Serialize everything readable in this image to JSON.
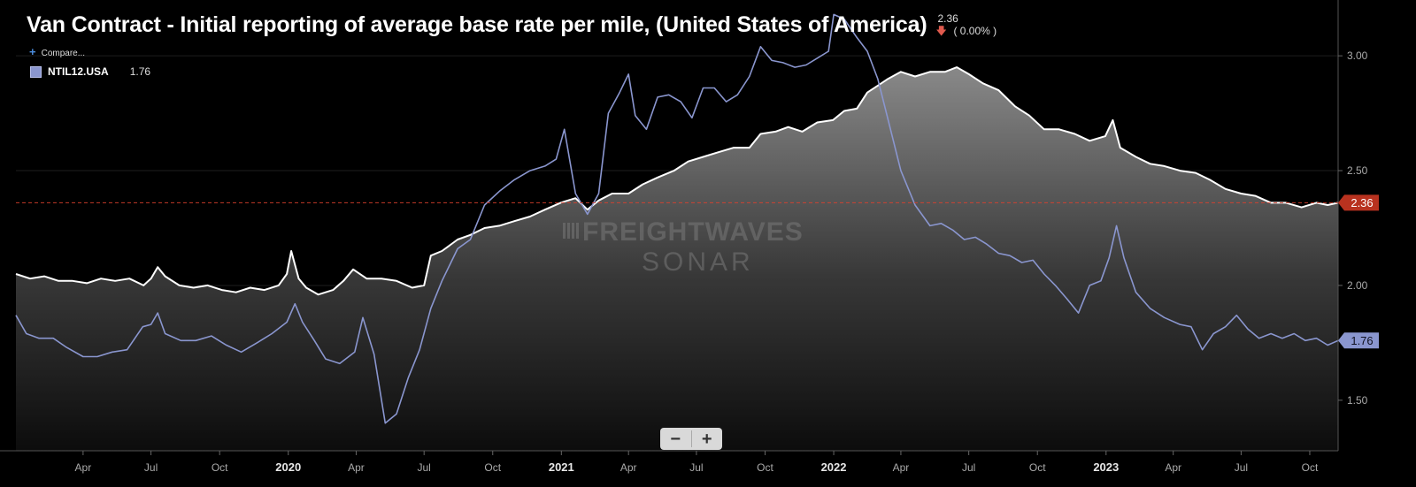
{
  "header": {
    "title": "Van Contract - Initial reporting of average base rate per mile, (United States of America)",
    "last_value": "2.36",
    "change_arrow": "down-arrow-icon",
    "change_text": "( 0.00% )"
  },
  "compare": {
    "icon": "plus-icon",
    "label": "Compare..."
  },
  "legend": {
    "symbol": "NTIL12.USA",
    "value": "1.76",
    "color": "#8a96cf"
  },
  "watermark": {
    "line1": "FREIGHTWAVES",
    "line2": "SONAR"
  },
  "zoom": {
    "minus": "−",
    "plus": "+"
  },
  "colors": {
    "main_series": "#ffffff",
    "compare_series": "#8a96cf",
    "price_line": "#d9402f",
    "background": "#000000"
  },
  "chart_data": {
    "type": "line",
    "xlabel": "",
    "ylabel": "",
    "x_range": [
      "2019-01-01",
      "2023-11-08"
    ],
    "ylim": [
      1.28,
      3.22
    ],
    "y_ticks": [
      "1.50",
      "2.00",
      "2.50",
      "3.00"
    ],
    "y_tick_values": [
      1.5,
      2.0,
      2.5,
      3.0
    ],
    "x_ticks": [
      {
        "label": "Apr",
        "date": "2019-04-01",
        "year": false
      },
      {
        "label": "Jul",
        "date": "2019-07-01",
        "year": false
      },
      {
        "label": "Oct",
        "date": "2019-10-01",
        "year": false
      },
      {
        "label": "2020",
        "date": "2020-01-01",
        "year": true
      },
      {
        "label": "Apr",
        "date": "2020-04-01",
        "year": false
      },
      {
        "label": "Jul",
        "date": "2020-07-01",
        "year": false
      },
      {
        "label": "Oct",
        "date": "2020-10-01",
        "year": false
      },
      {
        "label": "2021",
        "date": "2021-01-01",
        "year": true
      },
      {
        "label": "Apr",
        "date": "2021-04-01",
        "year": false
      },
      {
        "label": "Jul",
        "date": "2021-07-01",
        "year": false
      },
      {
        "label": "Oct",
        "date": "2021-10-01",
        "year": false
      },
      {
        "label": "2022",
        "date": "2022-01-01",
        "year": true
      },
      {
        "label": "Apr",
        "date": "2022-04-01",
        "year": false
      },
      {
        "label": "Jul",
        "date": "2022-07-01",
        "year": false
      },
      {
        "label": "Oct",
        "date": "2022-10-01",
        "year": false
      },
      {
        "label": "2023",
        "date": "2023-01-01",
        "year": true
      },
      {
        "label": "Apr",
        "date": "2023-04-01",
        "year": false
      },
      {
        "label": "Jul",
        "date": "2023-07-01",
        "year": false
      },
      {
        "label": "Oct",
        "date": "2023-10-01",
        "year": false
      }
    ],
    "price_line": {
      "value": 2.36,
      "label": "2.36"
    },
    "series": [
      {
        "name": "",
        "style": "area",
        "points": [
          [
            "2019-01-01",
            2.05
          ],
          [
            "2019-01-20",
            2.03
          ],
          [
            "2019-02-08",
            2.04
          ],
          [
            "2019-02-27",
            2.02
          ],
          [
            "2019-03-18",
            2.02
          ],
          [
            "2019-04-06",
            2.01
          ],
          [
            "2019-04-25",
            2.03
          ],
          [
            "2019-05-14",
            2.02
          ],
          [
            "2019-06-02",
            2.03
          ],
          [
            "2019-06-21",
            2.0
          ],
          [
            "2019-07-01",
            2.03
          ],
          [
            "2019-07-10",
            2.08
          ],
          [
            "2019-07-20",
            2.04
          ],
          [
            "2019-08-08",
            2.0
          ],
          [
            "2019-08-27",
            1.99
          ],
          [
            "2019-09-15",
            2.0
          ],
          [
            "2019-10-04",
            1.98
          ],
          [
            "2019-10-23",
            1.97
          ],
          [
            "2019-11-11",
            1.99
          ],
          [
            "2019-11-30",
            1.98
          ],
          [
            "2019-12-19",
            2.0
          ],
          [
            "2019-12-30",
            2.05
          ],
          [
            "2020-01-05",
            2.15
          ],
          [
            "2020-01-15",
            2.03
          ],
          [
            "2020-01-25",
            1.99
          ],
          [
            "2020-02-10",
            1.96
          ],
          [
            "2020-03-01",
            1.98
          ],
          [
            "2020-03-15",
            2.02
          ],
          [
            "2020-03-28",
            2.07
          ],
          [
            "2020-04-15",
            2.03
          ],
          [
            "2020-05-05",
            2.03
          ],
          [
            "2020-05-25",
            2.02
          ],
          [
            "2020-06-15",
            1.99
          ],
          [
            "2020-07-01",
            2.0
          ],
          [
            "2020-07-10",
            2.13
          ],
          [
            "2020-07-25",
            2.15
          ],
          [
            "2020-08-15",
            2.2
          ],
          [
            "2020-09-01",
            2.22
          ],
          [
            "2020-09-20",
            2.25
          ],
          [
            "2020-10-10",
            2.26
          ],
          [
            "2020-10-30",
            2.28
          ],
          [
            "2020-11-20",
            2.3
          ],
          [
            "2020-12-10",
            2.33
          ],
          [
            "2020-12-31",
            2.36
          ],
          [
            "2021-01-20",
            2.38
          ],
          [
            "2021-02-05",
            2.33
          ],
          [
            "2021-02-20",
            2.37
          ],
          [
            "2021-03-10",
            2.4
          ],
          [
            "2021-04-01",
            2.4
          ],
          [
            "2021-04-20",
            2.44
          ],
          [
            "2021-05-10",
            2.47
          ],
          [
            "2021-06-01",
            2.5
          ],
          [
            "2021-06-20",
            2.54
          ],
          [
            "2021-07-10",
            2.56
          ],
          [
            "2021-07-30",
            2.58
          ],
          [
            "2021-08-20",
            2.6
          ],
          [
            "2021-09-10",
            2.6
          ],
          [
            "2021-09-25",
            2.66
          ],
          [
            "2021-10-15",
            2.67
          ],
          [
            "2021-11-01",
            2.69
          ],
          [
            "2021-11-20",
            2.67
          ],
          [
            "2021-12-10",
            2.71
          ],
          [
            "2021-12-31",
            2.72
          ],
          [
            "2022-01-15",
            2.76
          ],
          [
            "2022-02-01",
            2.77
          ],
          [
            "2022-02-15",
            2.84
          ],
          [
            "2022-03-01",
            2.87
          ],
          [
            "2022-03-15",
            2.9
          ],
          [
            "2022-04-01",
            2.93
          ],
          [
            "2022-04-20",
            2.91
          ],
          [
            "2022-05-10",
            2.93
          ],
          [
            "2022-05-30",
            2.93
          ],
          [
            "2022-06-15",
            2.95
          ],
          [
            "2022-07-01",
            2.92
          ],
          [
            "2022-07-20",
            2.88
          ],
          [
            "2022-08-10",
            2.85
          ],
          [
            "2022-09-01",
            2.78
          ],
          [
            "2022-09-20",
            2.74
          ],
          [
            "2022-10-10",
            2.68
          ],
          [
            "2022-10-30",
            2.68
          ],
          [
            "2022-11-20",
            2.66
          ],
          [
            "2022-12-10",
            2.63
          ],
          [
            "2022-12-31",
            2.65
          ],
          [
            "2023-01-10",
            2.72
          ],
          [
            "2023-01-20",
            2.6
          ],
          [
            "2023-02-10",
            2.56
          ],
          [
            "2023-03-01",
            2.53
          ],
          [
            "2023-03-20",
            2.52
          ],
          [
            "2023-04-10",
            2.5
          ],
          [
            "2023-05-01",
            2.49
          ],
          [
            "2023-05-20",
            2.46
          ],
          [
            "2023-06-10",
            2.42
          ],
          [
            "2023-07-01",
            2.4
          ],
          [
            "2023-07-20",
            2.39
          ],
          [
            "2023-08-10",
            2.36
          ],
          [
            "2023-08-30",
            2.36
          ],
          [
            "2023-09-20",
            2.34
          ],
          [
            "2023-10-10",
            2.36
          ],
          [
            "2023-10-25",
            2.35
          ],
          [
            "2023-11-08",
            2.36
          ]
        ]
      },
      {
        "name": "NTIL12.USA",
        "style": "line",
        "points": [
          [
            "2019-01-01",
            1.87
          ],
          [
            "2019-01-15",
            1.79
          ],
          [
            "2019-02-01",
            1.77
          ],
          [
            "2019-02-20",
            1.77
          ],
          [
            "2019-03-10",
            1.73
          ],
          [
            "2019-04-01",
            1.69
          ],
          [
            "2019-04-20",
            1.69
          ],
          [
            "2019-05-10",
            1.71
          ],
          [
            "2019-05-30",
            1.72
          ],
          [
            "2019-06-20",
            1.82
          ],
          [
            "2019-07-01",
            1.83
          ],
          [
            "2019-07-10",
            1.88
          ],
          [
            "2019-07-20",
            1.79
          ],
          [
            "2019-08-10",
            1.76
          ],
          [
            "2019-08-30",
            1.76
          ],
          [
            "2019-09-20",
            1.78
          ],
          [
            "2019-10-10",
            1.74
          ],
          [
            "2019-10-30",
            1.71
          ],
          [
            "2019-11-20",
            1.75
          ],
          [
            "2019-12-10",
            1.79
          ],
          [
            "2019-12-30",
            1.84
          ],
          [
            "2020-01-10",
            1.92
          ],
          [
            "2020-01-20",
            1.84
          ],
          [
            "2020-02-05",
            1.76
          ],
          [
            "2020-02-20",
            1.68
          ],
          [
            "2020-03-10",
            1.66
          ],
          [
            "2020-03-30",
            1.71
          ],
          [
            "2020-04-10",
            1.86
          ],
          [
            "2020-04-25",
            1.7
          ],
          [
            "2020-05-10",
            1.4
          ],
          [
            "2020-05-25",
            1.44
          ],
          [
            "2020-06-10",
            1.6
          ],
          [
            "2020-06-25",
            1.72
          ],
          [
            "2020-07-10",
            1.9
          ],
          [
            "2020-07-25",
            2.02
          ],
          [
            "2020-08-15",
            2.16
          ],
          [
            "2020-09-01",
            2.2
          ],
          [
            "2020-09-20",
            2.35
          ],
          [
            "2020-10-10",
            2.41
          ],
          [
            "2020-10-30",
            2.46
          ],
          [
            "2020-11-20",
            2.5
          ],
          [
            "2020-12-10",
            2.52
          ],
          [
            "2020-12-25",
            2.55
          ],
          [
            "2021-01-05",
            2.68
          ],
          [
            "2021-01-20",
            2.4
          ],
          [
            "2021-02-05",
            2.31
          ],
          [
            "2021-02-20",
            2.4
          ],
          [
            "2021-03-05",
            2.75
          ],
          [
            "2021-03-20",
            2.84
          ],
          [
            "2021-04-01",
            2.92
          ],
          [
            "2021-04-10",
            2.74
          ],
          [
            "2021-04-25",
            2.68
          ],
          [
            "2021-05-10",
            2.82
          ],
          [
            "2021-05-25",
            2.83
          ],
          [
            "2021-06-10",
            2.8
          ],
          [
            "2021-06-25",
            2.73
          ],
          [
            "2021-07-10",
            2.86
          ],
          [
            "2021-07-25",
            2.86
          ],
          [
            "2021-08-10",
            2.8
          ],
          [
            "2021-08-25",
            2.83
          ],
          [
            "2021-09-10",
            2.91
          ],
          [
            "2021-09-25",
            3.04
          ],
          [
            "2021-10-10",
            2.98
          ],
          [
            "2021-10-25",
            2.97
          ],
          [
            "2021-11-10",
            2.95
          ],
          [
            "2021-11-25",
            2.96
          ],
          [
            "2021-12-10",
            2.99
          ],
          [
            "2021-12-25",
            3.02
          ],
          [
            "2022-01-01",
            3.18
          ],
          [
            "2022-01-15",
            3.16
          ],
          [
            "2022-02-01",
            3.08
          ],
          [
            "2022-02-15",
            3.02
          ],
          [
            "2022-03-01",
            2.9
          ],
          [
            "2022-03-15",
            2.72
          ],
          [
            "2022-04-01",
            2.5
          ],
          [
            "2022-04-20",
            2.35
          ],
          [
            "2022-05-10",
            2.26
          ],
          [
            "2022-05-25",
            2.27
          ],
          [
            "2022-06-10",
            2.24
          ],
          [
            "2022-06-25",
            2.2
          ],
          [
            "2022-07-10",
            2.21
          ],
          [
            "2022-07-25",
            2.18
          ],
          [
            "2022-08-10",
            2.14
          ],
          [
            "2022-08-25",
            2.13
          ],
          [
            "2022-09-10",
            2.1
          ],
          [
            "2022-09-25",
            2.11
          ],
          [
            "2022-10-10",
            2.05
          ],
          [
            "2022-10-25",
            2.0
          ],
          [
            "2022-11-10",
            1.94
          ],
          [
            "2022-11-25",
            1.88
          ],
          [
            "2022-12-10",
            2.0
          ],
          [
            "2022-12-25",
            2.02
          ],
          [
            "2023-01-05",
            2.12
          ],
          [
            "2023-01-15",
            2.26
          ],
          [
            "2023-01-25",
            2.12
          ],
          [
            "2023-02-10",
            1.97
          ],
          [
            "2023-03-01",
            1.9
          ],
          [
            "2023-03-20",
            1.86
          ],
          [
            "2023-04-10",
            1.83
          ],
          [
            "2023-04-25",
            1.82
          ],
          [
            "2023-05-10",
            1.72
          ],
          [
            "2023-05-25",
            1.79
          ],
          [
            "2023-06-10",
            1.82
          ],
          [
            "2023-06-25",
            1.87
          ],
          [
            "2023-07-10",
            1.81
          ],
          [
            "2023-07-25",
            1.77
          ],
          [
            "2023-08-10",
            1.79
          ],
          [
            "2023-08-25",
            1.77
          ],
          [
            "2023-09-10",
            1.79
          ],
          [
            "2023-09-25",
            1.76
          ],
          [
            "2023-10-10",
            1.77
          ],
          [
            "2023-10-25",
            1.74
          ],
          [
            "2023-11-08",
            1.76
          ]
        ]
      }
    ]
  }
}
